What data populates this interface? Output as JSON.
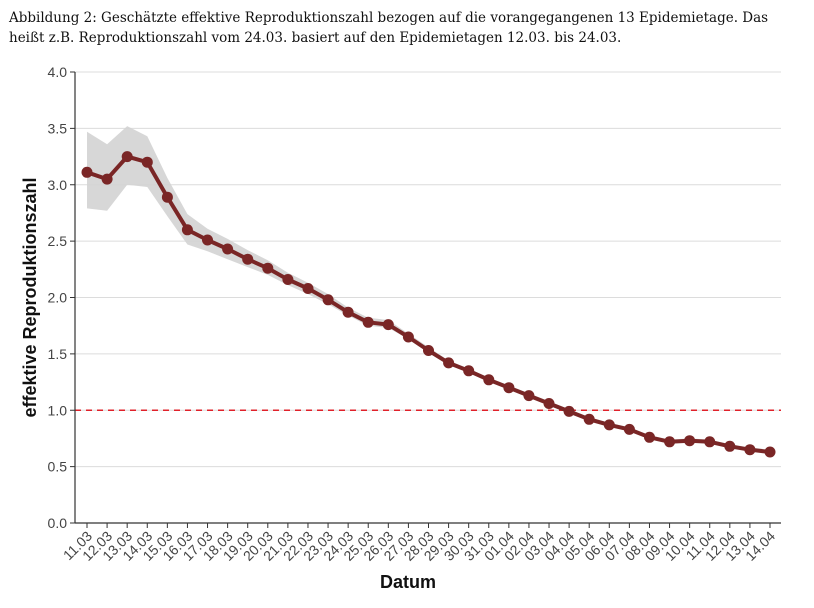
{
  "caption": {
    "line1": "Abbildung 2: Geschätzte effektive Reproduktionszahl bezogen auf die vorangegangenen 13 Epidemietage. Das",
    "line2": "heißt z.B. Reproduktionszahl vom 24.03. basiert auf den Epidemietagen 12.03. bis 24.03."
  },
  "chart_data": {
    "type": "line",
    "title": "",
    "xlabel": "Datum",
    "ylabel": "effektive Reproduktionszahl",
    "ylim": [
      0,
      4
    ],
    "yticks": [
      "0.0",
      "0.5",
      "1.0",
      "1.5",
      "2.0",
      "2.5",
      "3.0",
      "3.5",
      "4.0"
    ],
    "grid": "horizontal",
    "reference_line": {
      "y": 1.0,
      "style": "dashed",
      "color": "#e0202a"
    },
    "series_color": "#7a2626",
    "band_color": "#d3d3d3",
    "categories": [
      "11.03",
      "12.03",
      "13.03",
      "14.03",
      "15.03",
      "16.03",
      "17.03",
      "18.03",
      "19.03",
      "20.03",
      "21.03",
      "22.03",
      "23.03",
      "24.03",
      "25.03",
      "26.03",
      "27.03",
      "28.03",
      "29.03",
      "30.03",
      "31.03",
      "01.04",
      "02.04",
      "03.04",
      "04.04",
      "05.04",
      "06.04",
      "07.04",
      "08.04",
      "09.04",
      "10.04",
      "11.04",
      "12.04",
      "13.04",
      "14.04"
    ],
    "values": [
      3.11,
      3.05,
      3.25,
      3.2,
      2.89,
      2.6,
      2.51,
      2.43,
      2.34,
      2.26,
      2.16,
      2.08,
      1.98,
      1.87,
      1.78,
      1.76,
      1.65,
      1.53,
      1.42,
      1.35,
      1.27,
      1.2,
      1.13,
      1.06,
      0.99,
      0.92,
      0.87,
      0.83,
      0.76,
      0.72,
      0.73,
      0.72,
      0.68,
      0.65,
      0.63
    ],
    "lower": [
      2.79,
      2.77,
      3.0,
      2.98,
      2.72,
      2.47,
      2.41,
      2.34,
      2.27,
      2.2,
      2.11,
      2.03,
      1.94,
      1.84,
      1.75,
      1.73,
      1.63,
      1.51,
      1.41,
      1.34,
      1.26,
      1.19,
      1.12,
      1.05,
      0.98,
      0.91,
      0.86,
      0.82,
      0.75,
      0.71,
      0.72,
      0.71,
      0.67,
      0.64,
      0.62
    ],
    "upper": [
      3.47,
      3.36,
      3.52,
      3.43,
      3.06,
      2.74,
      2.61,
      2.52,
      2.42,
      2.33,
      2.22,
      2.13,
      2.03,
      1.91,
      1.82,
      1.8,
      1.68,
      1.56,
      1.44,
      1.37,
      1.29,
      1.22,
      1.15,
      1.08,
      1.01,
      0.94,
      0.89,
      0.85,
      0.78,
      0.74,
      0.75,
      0.74,
      0.7,
      0.67,
      0.65
    ]
  }
}
